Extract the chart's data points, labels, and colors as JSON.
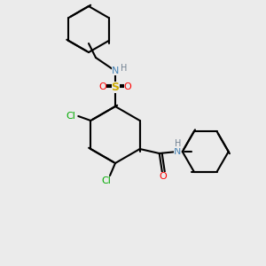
{
  "bg_color": "#ebebeb",
  "bond_color": "#000000",
  "bond_lw": 1.5,
  "atom_colors": {
    "N": "#4682b4",
    "H": "#708090",
    "O": "#ff0000",
    "S": "#ccaa00",
    "Cl": "#00aa00",
    "C": "#000000"
  },
  "font_size": 8,
  "font_size_H": 7
}
